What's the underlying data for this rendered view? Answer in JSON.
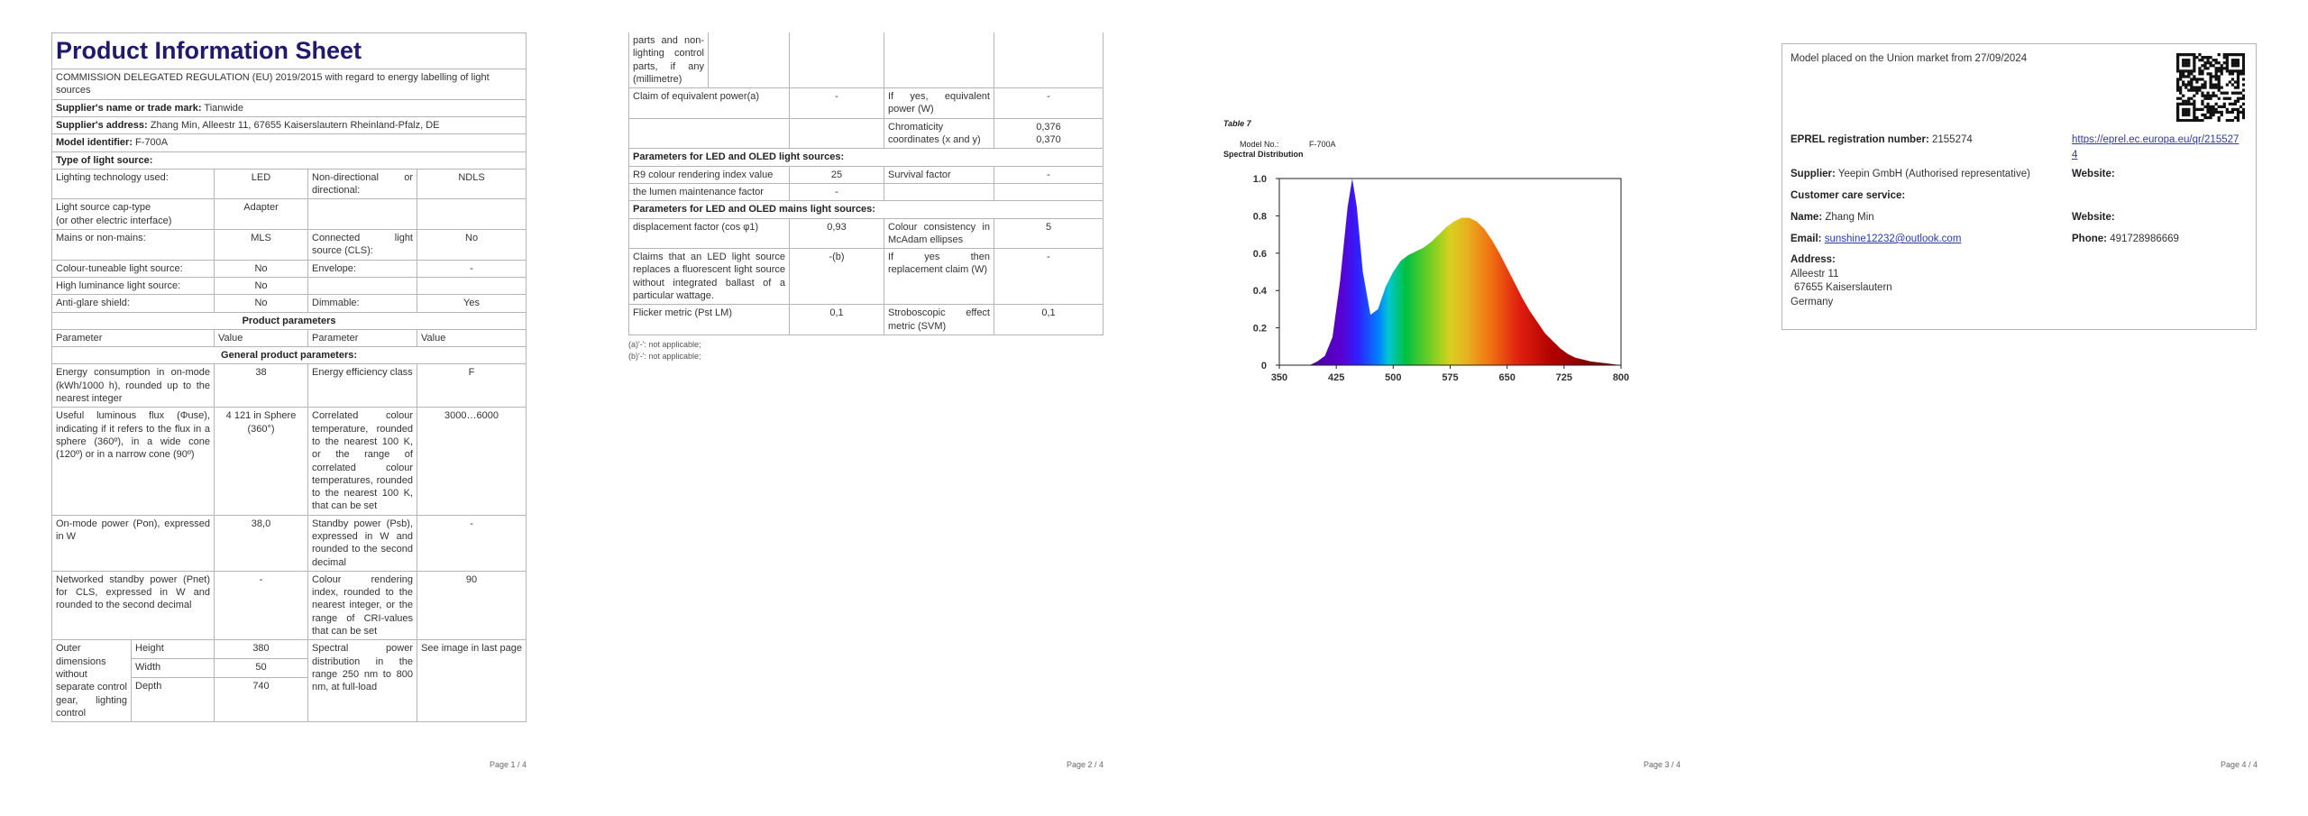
{
  "page1": {
    "title": "Product Information Sheet",
    "regulation": "COMMISSION DELEGATED REGULATION (EU) 2019/2015 with regard to energy labelling of light sources",
    "supplier": {
      "label": "Supplier's name or trade mark:",
      "value": "Tianwide"
    },
    "address": {
      "label": "Supplier's address:",
      "value": "Zhang Min, Alleestr 11, 67655 Kaiserslautern Rheinland-Pfalz, DE"
    },
    "model": {
      "label": "Model identifier:",
      "value": "F-700A"
    },
    "light_source_heading": "Type of light source:",
    "light_source_rows": [
      [
        "Lighting technology used:",
        "LED",
        "Non-directional or directional:",
        "NDLS"
      ],
      [
        "Light source cap-type\n(or other electric interface)",
        "Adapter",
        null,
        null
      ],
      [
        "Mains or non-mains:",
        "MLS",
        "Connected light source (CLS):",
        "No"
      ],
      [
        "Colour-tuneable light source:",
        "No",
        "Envelope:",
        "-"
      ],
      [
        "High luminance light source:",
        "No",
        null,
        null
      ],
      [
        "Anti-glare shield:",
        "No",
        "Dimmable:",
        "Yes"
      ]
    ],
    "product_parameters_heading": "Product parameters",
    "header_row": [
      "Parameter",
      "Value",
      "Parameter",
      "Value"
    ],
    "general_heading": "General product parameters:",
    "general_rows": [
      [
        "Energy consumption in on-mode (kWh/1000 h), rounded up to the nearest integer",
        "38",
        "Energy efficiency class",
        "F"
      ],
      [
        "Useful luminous flux (Φuse), indicating if it refers to the flux in a sphere (360º), in a wide cone (120º) or in a narrow cone (90º)",
        "4 121 in Sphere (360°)",
        "Correlated colour temperature, rounded to the nearest 100 K, or the range of correlated colour temperatures, rounded to the nearest 100 K, that can be set",
        "3000…6000"
      ],
      [
        "On-mode power (Pon), expressed in W",
        "38,0",
        "Standby power (Psb), expressed in W and rounded to the second decimal",
        "-"
      ],
      [
        "Networked standby power (Pnet) for CLS, expressed in W and rounded to the second decimal",
        "-",
        "Colour rendering index, rounded to the nearest integer, or the range of CRI-values that can be set",
        "90"
      ]
    ],
    "dimensions": {
      "label": "Outer dimensions without separate control gear, lighting control",
      "parts": [
        [
          "Height",
          "380"
        ],
        [
          "Width",
          "50"
        ],
        [
          "Depth",
          "740"
        ]
      ],
      "spd_label": "Spectral power distribution in the range 250 nm to 800 nm, at full-load",
      "spd_value": "See image in last page"
    },
    "page_number": "Page 1 / 4"
  },
  "page2": {
    "continuation": "parts and non-lighting control parts, if any (millimetre)",
    "rows_a": [
      [
        "Claim of equivalent power(a)",
        "-",
        "If yes, equivalent power (W)",
        "-"
      ],
      [
        null,
        null,
        "Chromaticity coordinates (x and y)",
        "0,376\n0,370"
      ]
    ],
    "led_heading": "Parameters for LED and OLED light sources:",
    "rows_b": [
      [
        "R9 colour rendering index value",
        "25",
        "Survival factor",
        "-"
      ],
      [
        "the lumen maintenance factor",
        "-",
        null,
        null
      ]
    ],
    "mains_heading": "Parameters for LED and OLED mains light sources:",
    "rows_c": [
      [
        "displacement factor (cos φ1)",
        "0,93",
        "Colour consistency in McAdam ellipses",
        "5"
      ],
      [
        "Claims that an LED light source replaces a fluorescent light source without integrated ballast of a particular wattage.",
        "-(b)",
        "If yes then replacement claim (W)",
        "-"
      ],
      [
        "Flicker metric (Pst LM)",
        "0,1",
        "Stroboscopic effect metric (SVM)",
        "0,1"
      ]
    ],
    "footnotes": [
      "(a)'-': not applicable;",
      "(b)'-': not applicable;"
    ],
    "page_number": "Page 2 / 4"
  },
  "page3": {
    "table_label": "Table 7",
    "model_label": "Model No.:",
    "model": "F-700A",
    "chart_title": "Spectral Distribution",
    "spectrum": {
      "type": "area",
      "x": [
        390,
        400,
        410,
        420,
        430,
        440,
        446,
        452,
        460,
        470,
        480,
        490,
        500,
        510,
        520,
        530,
        540,
        550,
        560,
        570,
        580,
        590,
        600,
        610,
        620,
        630,
        640,
        650,
        660,
        670,
        680,
        690,
        700,
        710,
        720,
        730,
        740,
        750,
        760,
        780,
        800
      ],
      "values": [
        0,
        0.02,
        0.05,
        0.15,
        0.45,
        0.85,
        1.0,
        0.85,
        0.5,
        0.27,
        0.3,
        0.42,
        0.5,
        0.56,
        0.59,
        0.61,
        0.63,
        0.66,
        0.7,
        0.74,
        0.77,
        0.79,
        0.79,
        0.77,
        0.73,
        0.67,
        0.6,
        0.52,
        0.44,
        0.36,
        0.29,
        0.23,
        0.17,
        0.13,
        0.09,
        0.06,
        0.04,
        0.03,
        0.02,
        0.01,
        0
      ],
      "xlim": [
        350,
        800
      ],
      "ylim": [
        0,
        1.0
      ],
      "xticks": [
        350,
        425,
        500,
        575,
        650,
        725,
        800
      ],
      "yticks": [
        0,
        0.2,
        0.4,
        0.6,
        0.8,
        {
          "value": 1,
          "label": "1.0"
        }
      ]
    },
    "page_number": "Page 3 / 4"
  },
  "page4": {
    "market": "Model placed on the Union market from 27/09/2024",
    "eprel": {
      "label": "EPREL registration number:",
      "value": "2155274",
      "link": "https://eprel.ec.europa.eu/qr/2155274"
    },
    "supplier": {
      "label": "Supplier:",
      "value": "Yeepin GmbH (Authorised representative)"
    },
    "website_label": "Website:",
    "customer_care": "Customer care service:",
    "name": {
      "label": "Name:",
      "value": "Zhang Min"
    },
    "website_label_2": "Website:",
    "email": {
      "label": "Email:",
      "value": "sunshine12232@outlook.com"
    },
    "phone": {
      "label": "Phone:",
      "value": "491728986669"
    },
    "address": {
      "label": "Address:",
      "lines": [
        "Alleestr 11",
        "67655 Kaiserslautern",
        "Germany"
      ]
    },
    "page_number": "Page 4 / 4"
  }
}
